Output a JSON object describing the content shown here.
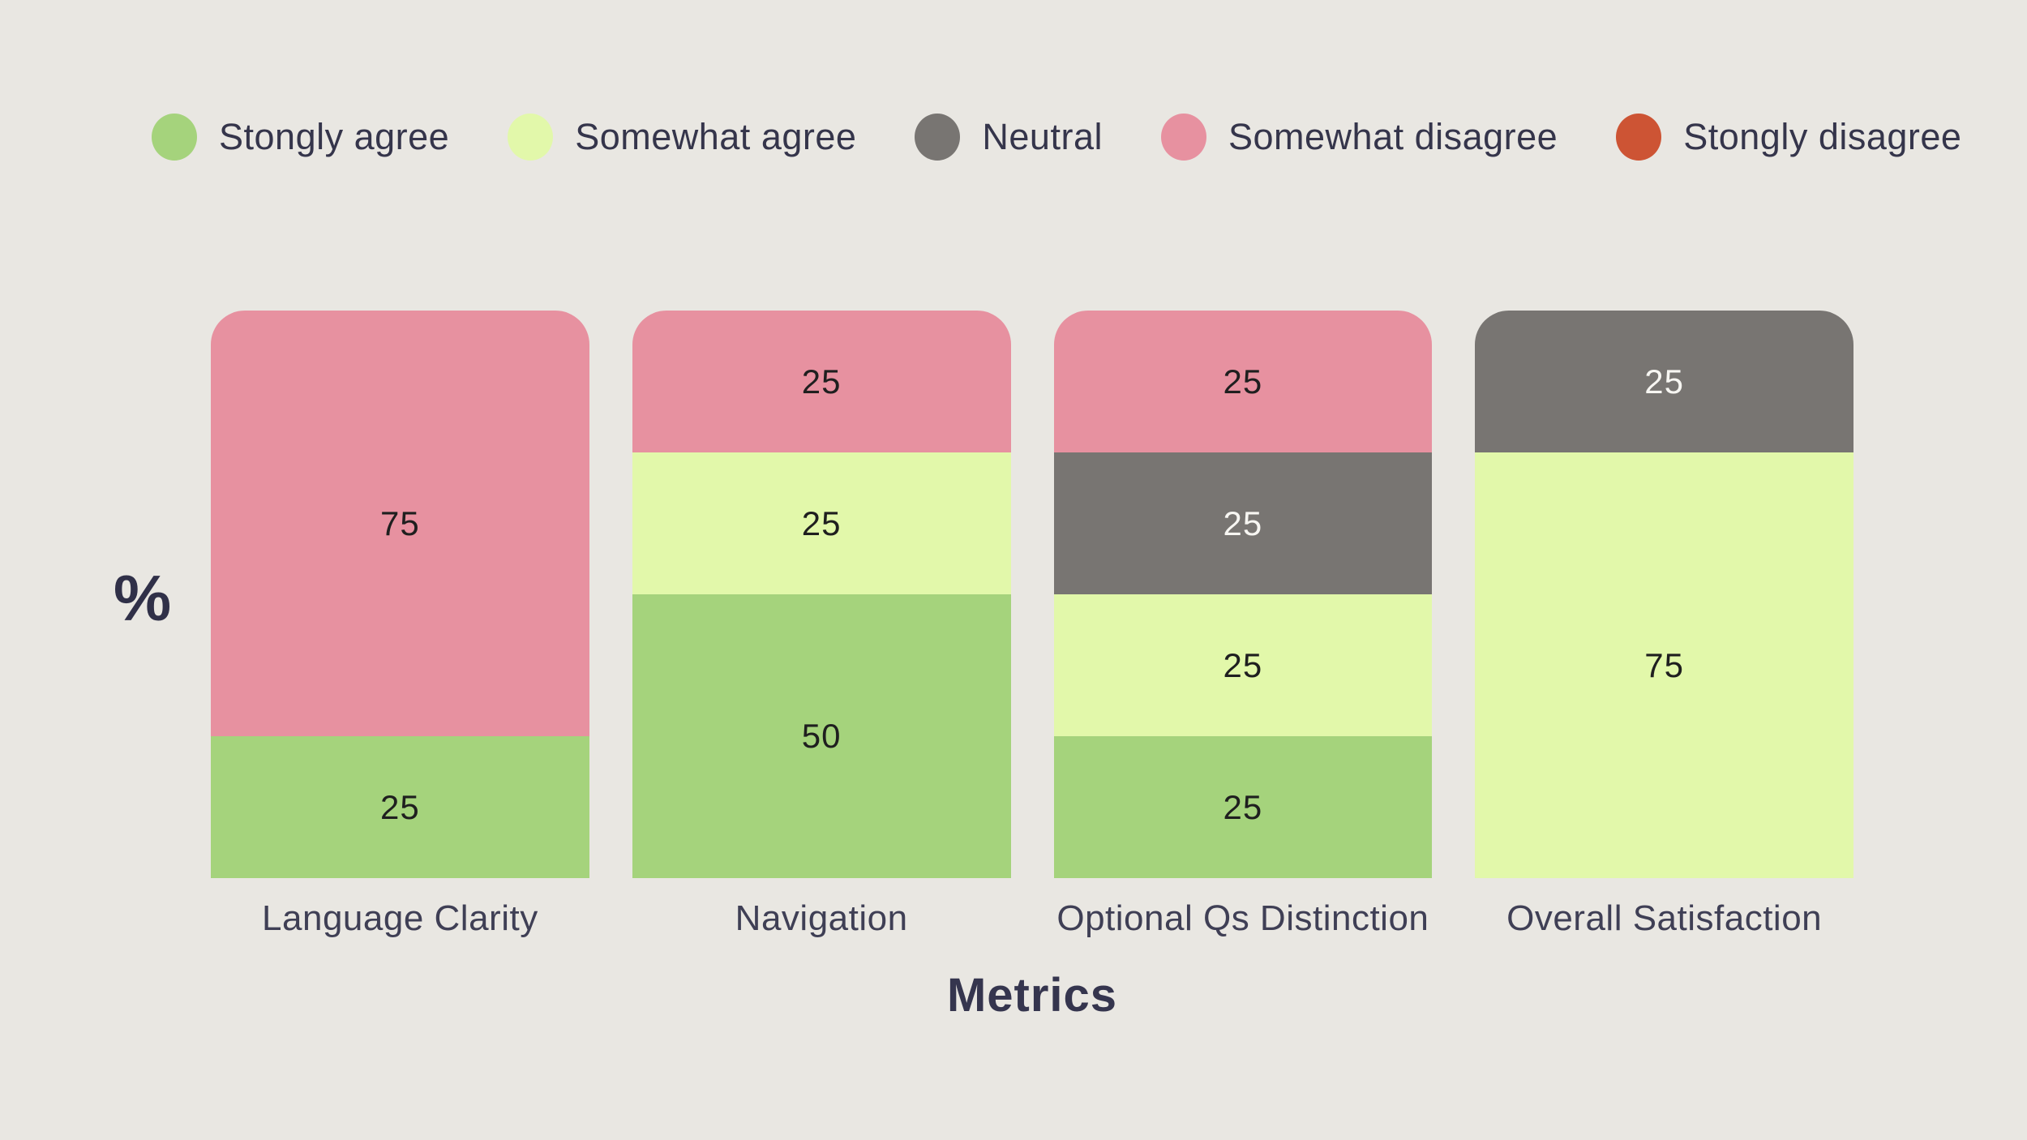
{
  "background_color": "#e9e7e2",
  "legend": {
    "items": [
      {
        "label": "Stongly agree",
        "color": "#a5d37c"
      },
      {
        "label": "Somewhat agree",
        "color": "#e2f8aa"
      },
      {
        "label": "Neutral",
        "color": "#787572"
      },
      {
        "label": "Somewhat disagree",
        "color": "#e791a0"
      },
      {
        "label": "Stongly disagree",
        "color": "#cd5434"
      }
    ]
  },
  "chart_data": {
    "type": "bar",
    "stacked": true,
    "orientation": "vertical",
    "title": "",
    "xlabel": "Metrics",
    "ylabel": "%",
    "ylim": [
      0,
      100
    ],
    "grid": false,
    "legend_position": "top",
    "categories": [
      "Language Clarity",
      "Navigation",
      "Optional Qs Distinction",
      "Overall Satisfaction"
    ],
    "series": [
      {
        "name": "Stongly agree",
        "color": "#a5d37c",
        "value_text_color": "#1f1f1f",
        "values": [
          25,
          50,
          25,
          0
        ]
      },
      {
        "name": "Somewhat agree",
        "color": "#e2f8aa",
        "value_text_color": "#1f1f1f",
        "values": [
          0,
          25,
          25,
          75
        ]
      },
      {
        "name": "Neutral",
        "color": "#787572",
        "value_text_color": "#f7f6f2",
        "values": [
          0,
          0,
          25,
          25
        ]
      },
      {
        "name": "Somewhat disagree",
        "color": "#e791a0",
        "value_text_color": "#1f1f1f",
        "values": [
          75,
          25,
          25,
          0
        ]
      },
      {
        "name": "Stongly disagree",
        "color": "#cd5434",
        "value_text_color": "#f7f6f2",
        "values": [
          0,
          0,
          0,
          0
        ]
      }
    ]
  }
}
